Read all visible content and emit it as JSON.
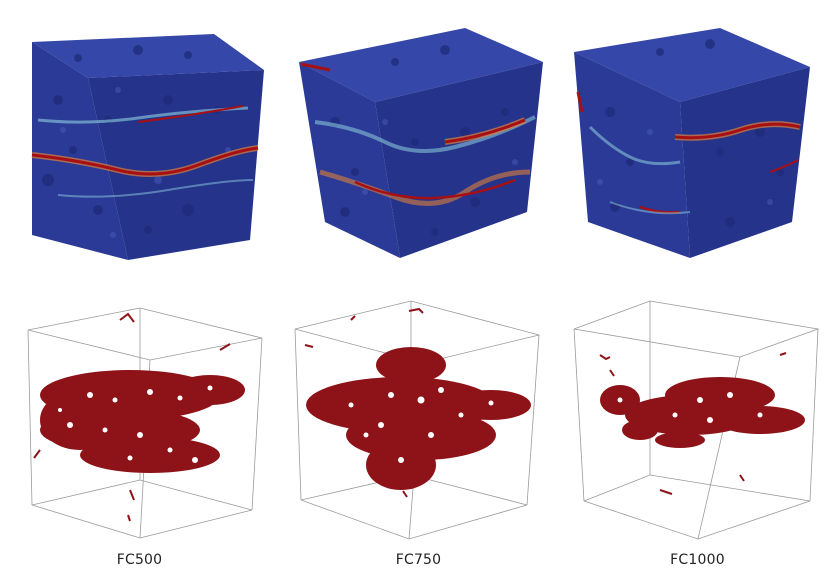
{
  "panels": [
    {
      "id": "fc500",
      "label": "FC500"
    },
    {
      "id": "fc750",
      "label": "FC750"
    },
    {
      "id": "fc1000",
      "label": "FC1000"
    }
  ],
  "colors": {
    "volume_blue": "#27358f",
    "volume_top": "#3547a8",
    "volume_dark": "#1e2a78",
    "hot_red": "#a80f12",
    "warm_orange": "#e0803a",
    "cool_cyan": "#8fd0e0",
    "network_red": "#8e1318",
    "box_line": "#9a9a9a"
  }
}
